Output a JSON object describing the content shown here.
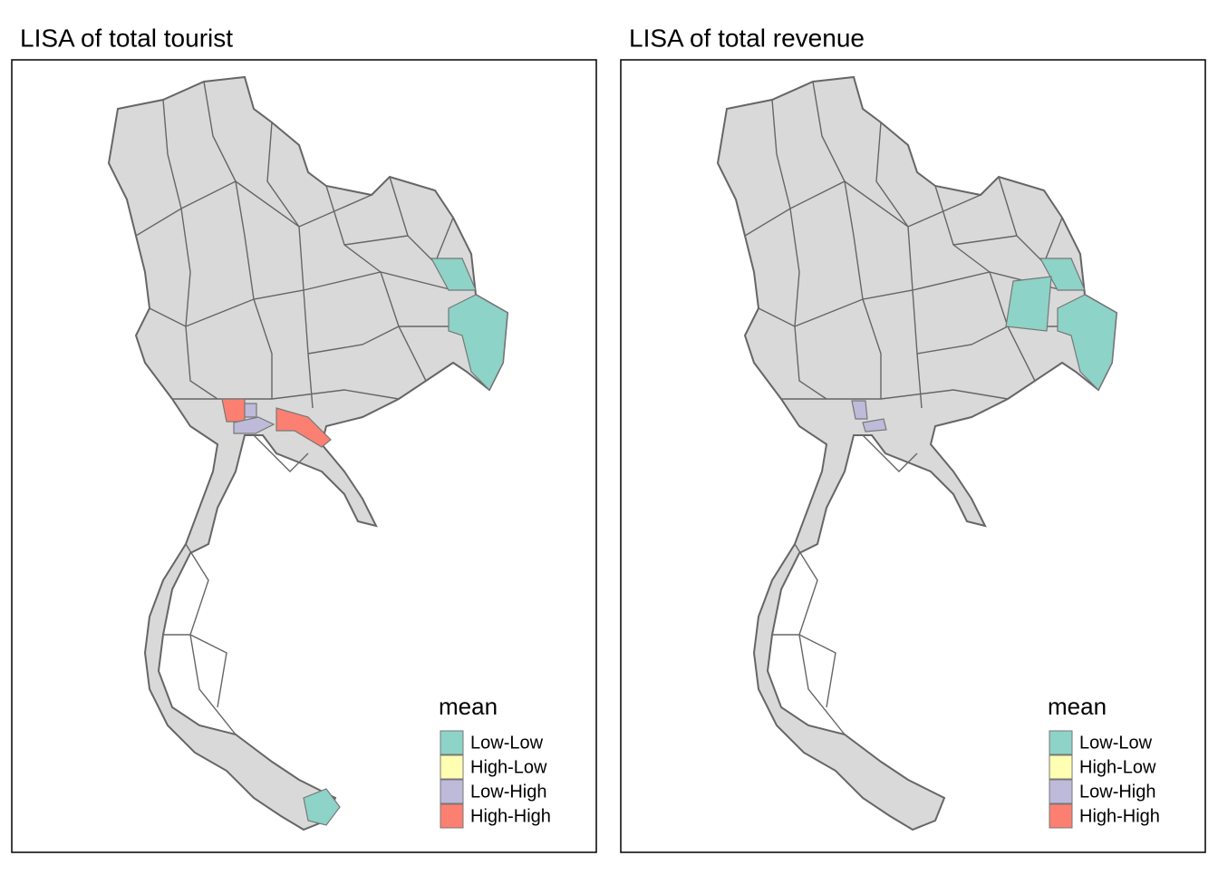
{
  "panels": [
    {
      "title": "LISA of total tourist",
      "legend": {
        "title": "mean",
        "items": [
          {
            "label": "Low-Low",
            "color": "#8dd3c7"
          },
          {
            "label": "High-Low",
            "color": "#ffffb3"
          },
          {
            "label": "Low-High",
            "color": "#bebada"
          },
          {
            "label": "High-High",
            "color": "#fb8072"
          }
        ]
      }
    },
    {
      "title": "LISA of total revenue",
      "legend": {
        "title": "mean",
        "items": [
          {
            "label": "Low-Low",
            "color": "#8dd3c7"
          },
          {
            "label": "High-Low",
            "color": "#ffffb3"
          },
          {
            "label": "Low-High",
            "color": "#bebada"
          },
          {
            "label": "High-High",
            "color": "#fb8072"
          }
        ]
      }
    }
  ]
}
